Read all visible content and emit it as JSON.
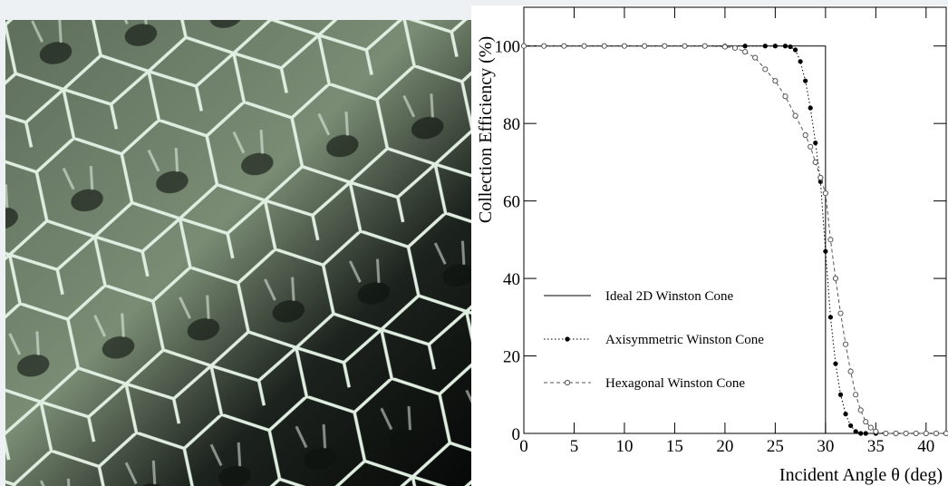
{
  "chart_data": {
    "type": "line",
    "xlabel": "Incident Angle θ (deg)",
    "ylabel": "Collection Efficiency (%)",
    "xlim": [
      0,
      42
    ],
    "ylim": [
      0,
      110
    ],
    "xticks": [
      0,
      5,
      10,
      15,
      20,
      25,
      30,
      35,
      40
    ],
    "yticks": [
      0,
      20,
      40,
      60,
      80,
      100
    ],
    "legend": "lower left",
    "series": [
      {
        "name": "Ideal 2D Winston Cone",
        "color": "#000000",
        "style": "solid",
        "marker": "none",
        "x": [
          0,
          30,
          30,
          42
        ],
        "values": [
          100,
          100,
          0,
          0
        ]
      },
      {
        "name": "Axisymmetric Winston Cone",
        "color": "#000000",
        "style": "dotted",
        "marker": "filled",
        "x": [
          0,
          2,
          4,
          6,
          8,
          10,
          12,
          14,
          16,
          18,
          20,
          22,
          24,
          25,
          26,
          26.5,
          27,
          27.5,
          28,
          28.5,
          29,
          29.5,
          30,
          30.5,
          31,
          31.5,
          32,
          32.5,
          33,
          33.5,
          34,
          35,
          36,
          37,
          38,
          39,
          40,
          41,
          42
        ],
        "values": [
          100,
          100,
          100,
          100,
          100,
          100,
          100,
          100,
          100,
          100,
          100,
          100,
          100,
          100,
          100,
          99.8,
          99,
          96,
          91,
          84,
          75,
          65,
          47,
          30,
          18,
          10,
          5,
          2,
          0.5,
          0,
          0,
          0,
          0,
          0,
          0,
          0,
          0,
          0,
          0
        ]
      },
      {
        "name": "Hexagonal Winston Cone",
        "color": "#555555",
        "style": "dashed",
        "marker": "open",
        "x": [
          0,
          2,
          4,
          6,
          8,
          10,
          12,
          14,
          16,
          18,
          20,
          21,
          22,
          23,
          24,
          25,
          26,
          27,
          28,
          28.5,
          29,
          29.5,
          30,
          30.5,
          31,
          31.5,
          32,
          32.5,
          33,
          33.5,
          34,
          34.5,
          35,
          36,
          37,
          38,
          39,
          40,
          41,
          42
        ],
        "values": [
          100,
          100,
          100,
          100,
          100,
          100,
          100,
          100,
          100,
          100,
          99.8,
          99.5,
          98.5,
          97,
          94,
          91,
          87,
          82,
          77,
          74,
          70,
          66,
          62,
          50,
          40,
          31,
          23,
          16,
          10,
          6,
          3,
          1.5,
          0.5,
          0,
          0,
          0,
          0,
          0,
          0,
          0
        ]
      }
    ]
  }
}
